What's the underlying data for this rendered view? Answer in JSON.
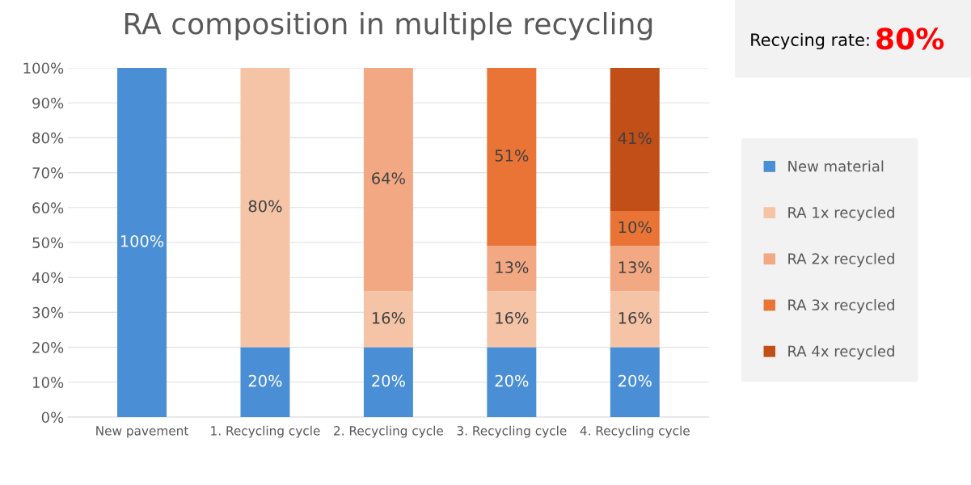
{
  "chart_data": {
    "type": "bar",
    "title": "RA composition in multiple recycling",
    "stacked": true,
    "categories": [
      "New pavement",
      "1. Recycling cycle",
      "2. Recycling cycle",
      "3. Recycling cycle",
      "4. Recycling cycle"
    ],
    "series": [
      {
        "name": "New material",
        "color": "#4a8fd6",
        "values": [
          100,
          20,
          20,
          20,
          20
        ],
        "value_labels": [
          "100%",
          "20%",
          "20%",
          "20%",
          "20%"
        ]
      },
      {
        "name": "RA 1x recycled",
        "color": "#f5c4a6",
        "values": [
          0,
          80,
          16,
          16,
          16
        ],
        "value_labels": [
          null,
          "80%",
          "16%",
          "16%",
          "16%"
        ]
      },
      {
        "name": "RA 2x recycled",
        "color": "#f2a983",
        "values": [
          0,
          0,
          64,
          13,
          13
        ],
        "value_labels": [
          null,
          null,
          "64%",
          "13%",
          "13%"
        ]
      },
      {
        "name": "RA 3x recycled",
        "color": "#e97435",
        "values": [
          0,
          0,
          0,
          51,
          10
        ],
        "value_labels": [
          null,
          null,
          null,
          "51%",
          "10%"
        ]
      },
      {
        "name": "RA 4x recycled",
        "color": "#c24f17",
        "values": [
          0,
          0,
          0,
          0,
          41
        ],
        "value_labels": [
          null,
          null,
          null,
          null,
          "41%"
        ]
      }
    ],
    "ylim": [
      0,
      100
    ],
    "yticks": [
      {
        "value": 0,
        "label": "0%"
      },
      {
        "value": 10,
        "label": "10%"
      },
      {
        "value": 20,
        "label": "20%"
      },
      {
        "value": 30,
        "label": "30%"
      },
      {
        "value": 40,
        "label": "40%"
      },
      {
        "value": 50,
        "label": "50%"
      },
      {
        "value": 60,
        "label": "60%"
      },
      {
        "value": 70,
        "label": "70%"
      },
      {
        "value": 80,
        "label": "80%"
      },
      {
        "value": 90,
        "label": "90%"
      },
      {
        "value": 100,
        "label": "100%"
      }
    ],
    "grid": "y",
    "legend": "right",
    "annotations": [
      "Recycing rate:",
      "80%"
    ]
  }
}
